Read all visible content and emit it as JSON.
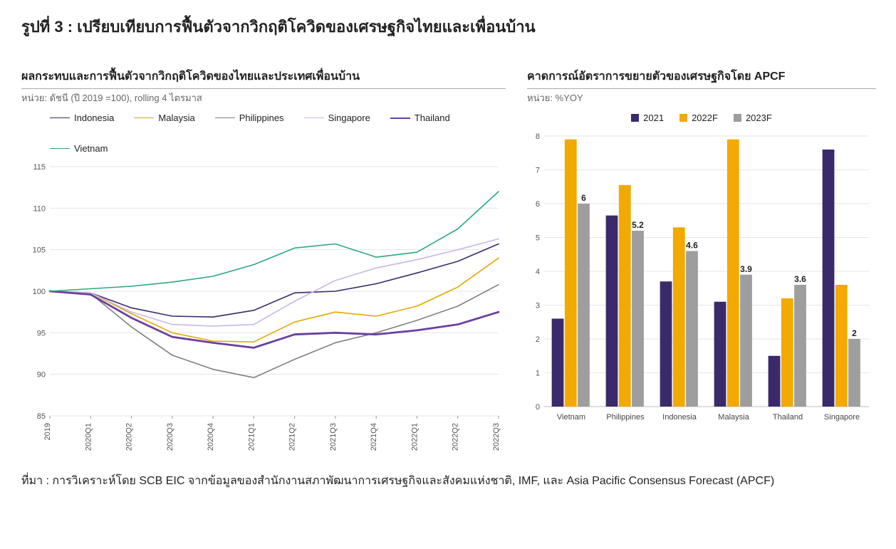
{
  "figure_title": "รูปที่ 3 : เปรียบเทียบการฟื้นตัวจากวิกฤติโควิดของเศรษฐกิจไทยและเพื่อนบ้าน",
  "source_note": "ที่มา : การวิเคราะห์โดย SCB EIC จากข้อมูลของสำนักงานสภาพัฒนาการเศรษฐกิจและสังคมแห่งชาติ, IMF, และ Asia Pacific Consensus Forecast (APCF)",
  "line_chart": {
    "type": "line",
    "title": "ผลกระทบและการฟื้นตัวจากวิกฤติโควิดของไทยและประเทศเพื่อนบ้าน",
    "subtitle": "หน่วย: ดัชนี (ปี 2019 =100), rolling 4 ไตรมาส",
    "x_labels": [
      "2019",
      "2020Q1",
      "2020Q2",
      "2020Q3",
      "2020Q4",
      "2021Q1",
      "2021Q2",
      "2021Q3",
      "2021Q4",
      "2022Q1",
      "2022Q2",
      "2022Q3"
    ],
    "y_ticks": [
      85,
      90,
      95,
      100,
      105,
      110,
      115
    ],
    "ylim": [
      85,
      115
    ],
    "background_color": "#ffffff",
    "grid_color": "#e6e6e6",
    "axis_label_fontsize": 11,
    "series": [
      {
        "name": "Indonesia",
        "color": "#3b2a6b",
        "width": 1.6,
        "values": [
          100,
          99.8,
          98.0,
          97.0,
          96.9,
          97.7,
          99.8,
          100.0,
          100.9,
          102.2,
          103.6,
          105.7
        ]
      },
      {
        "name": "Malaysia",
        "color": "#e4a900",
        "width": 1.6,
        "values": [
          100,
          99.8,
          97.3,
          95.0,
          94.0,
          93.9,
          96.3,
          97.5,
          97.0,
          98.2,
          100.5,
          104.0
        ]
      },
      {
        "name": "Philippines",
        "color": "#808080",
        "width": 1.6,
        "values": [
          100,
          99.7,
          95.7,
          92.3,
          90.6,
          89.6,
          91.8,
          93.8,
          95.0,
          96.5,
          98.2,
          100.8
        ]
      },
      {
        "name": "Singapore",
        "color": "#c9b7e6",
        "width": 1.6,
        "values": [
          100,
          99.8,
          97.5,
          96.0,
          95.8,
          96.0,
          98.8,
          101.3,
          102.8,
          103.8,
          105.0,
          106.3
        ]
      },
      {
        "name": "Thailand",
        "color": "#6b3fa0",
        "width": 2.8,
        "values": [
          100,
          99.6,
          96.8,
          94.5,
          93.8,
          93.2,
          94.8,
          95.0,
          94.8,
          95.3,
          96.0,
          97.5
        ]
      },
      {
        "name": "Vietnam",
        "color": "#2ca97a",
        "width": 1.6,
        "values": [
          100,
          100.3,
          100.6,
          101.1,
          101.8,
          103.2,
          105.2,
          105.7,
          104.1,
          104.7,
          107.5,
          112.0
        ]
      }
    ]
  },
  "bar_chart": {
    "type": "bar",
    "title": "คาดการณ์อัตราการขยายตัวของเศรษฐกิจโดย APCF",
    "subtitle": "หน่วย: %YOY",
    "categories": [
      "Vietnam",
      "Philippines",
      "Indonesia",
      "Malaysia",
      "Thailand",
      "Singapore"
    ],
    "y_ticks": [
      0,
      1,
      2,
      3,
      4,
      5,
      6,
      7,
      8
    ],
    "ylim": [
      0,
      8
    ],
    "background_color": "#ffffff",
    "grid_color": "#e6e6e6",
    "axis_label_fontsize": 11,
    "data_label_fontsize": 12,
    "bar_group_width": 0.72,
    "groups": [
      {
        "name": "2021",
        "color": "#3b2a6b",
        "values": [
          2.6,
          5.65,
          3.7,
          3.1,
          1.5,
          7.6
        ],
        "labels": [
          "",
          "",
          "",
          "",
          "",
          ""
        ]
      },
      {
        "name": "2022F",
        "color": "#f2a900",
        "values": [
          7.9,
          6.55,
          5.3,
          7.9,
          3.2,
          3.6
        ],
        "labels": [
          "",
          "",
          "",
          "",
          "",
          ""
        ]
      },
      {
        "name": "2023F",
        "color": "#9e9e9e",
        "values": [
          6.0,
          5.2,
          4.6,
          3.9,
          3.6,
          2.0
        ],
        "labels": [
          "6",
          "5.2",
          "4.6",
          "3.9",
          "3.6",
          "2"
        ]
      }
    ]
  }
}
